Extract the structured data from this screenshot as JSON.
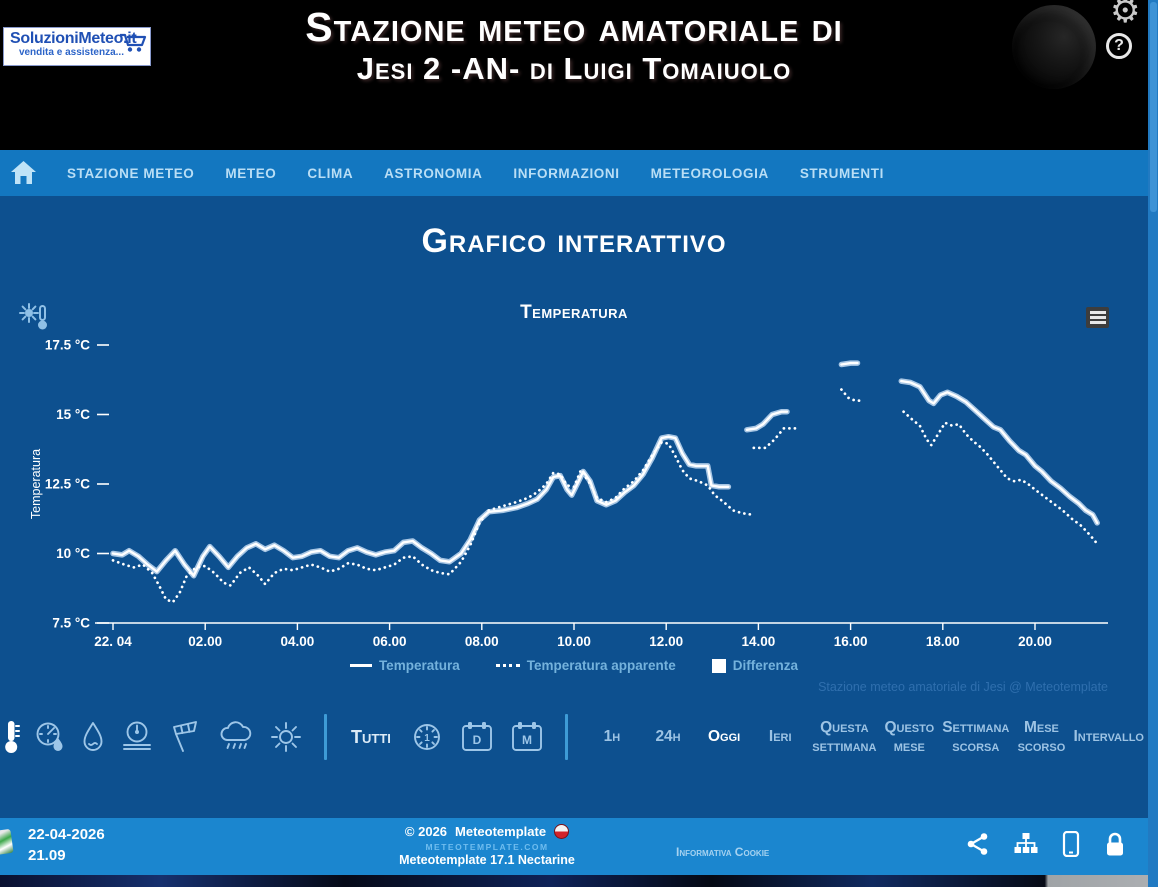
{
  "header": {
    "logo": {
      "line1": "SoluzioniMeteo.it",
      "line2": "vendita e assistenza..."
    },
    "title_line1": "Stazione meteo amatoriale di",
    "title_line2": "Jesi 2 -AN- di Luigi Tomaiuolo"
  },
  "nav": {
    "items": [
      "STAZIONE METEO",
      "METEO",
      "CLIMA",
      "ASTRONOMIA",
      "INFORMAZIONI",
      "METEOROLOGIA",
      "STRUMENTI"
    ]
  },
  "page": {
    "title": "Grafico interattivo"
  },
  "chart_data": {
    "type": "line",
    "title": "Temperatura",
    "ylabel": "Temperatura",
    "ylim": [
      7.5,
      17.5
    ],
    "yticks": [
      7.5,
      10,
      12.5,
      15,
      17.5
    ],
    "ytick_labels": [
      "7.5 °C",
      "10 °C",
      "12.5 °C",
      "15 °C",
      "17.5 °C"
    ],
    "xlim_hours": [
      0,
      21.5
    ],
    "xticks": [
      {
        "hour": 0,
        "label": "22. 04"
      },
      {
        "hour": 2,
        "label": "02.00"
      },
      {
        "hour": 4,
        "label": "04.00"
      },
      {
        "hour": 6,
        "label": "06.00"
      },
      {
        "hour": 8,
        "label": "08.00"
      },
      {
        "hour": 10,
        "label": "10.00"
      },
      {
        "hour": 12,
        "label": "12.00"
      },
      {
        "hour": 14,
        "label": "14.00"
      },
      {
        "hour": 16,
        "label": "16.00"
      },
      {
        "hour": 18,
        "label": "18.00"
      },
      {
        "hour": 20,
        "label": "20.00"
      }
    ],
    "grid": false,
    "legend_position": "bottom",
    "series": [
      {
        "name": "Temperatura",
        "style": "solid",
        "color": "#ffffff",
        "unit": "°C",
        "segments": [
          [
            [
              0,
              10.0
            ],
            [
              0.2,
              9.95
            ],
            [
              0.35,
              10.1
            ],
            [
              0.55,
              9.9
            ],
            [
              0.75,
              9.6
            ],
            [
              0.95,
              9.35
            ],
            [
              1.15,
              9.75
            ],
            [
              1.35,
              10.1
            ],
            [
              1.55,
              9.6
            ],
            [
              1.75,
              9.2
            ],
            [
              1.95,
              9.9
            ],
            [
              2.1,
              10.25
            ],
            [
              2.3,
              9.9
            ],
            [
              2.5,
              9.5
            ],
            [
              2.7,
              9.9
            ],
            [
              2.9,
              10.2
            ],
            [
              3.1,
              10.35
            ],
            [
              3.3,
              10.15
            ],
            [
              3.5,
              10.3
            ],
            [
              3.7,
              10.1
            ],
            [
              3.9,
              9.85
            ],
            [
              4.1,
              9.9
            ],
            [
              4.3,
              10.05
            ],
            [
              4.5,
              10.1
            ],
            [
              4.7,
              9.9
            ],
            [
              4.9,
              9.85
            ],
            [
              5.1,
              10.1
            ],
            [
              5.3,
              10.2
            ],
            [
              5.5,
              10.05
            ],
            [
              5.7,
              9.95
            ],
            [
              5.9,
              10.05
            ],
            [
              6.1,
              10.1
            ],
            [
              6.3,
              10.4
            ],
            [
              6.5,
              10.45
            ],
            [
              6.7,
              10.2
            ],
            [
              6.9,
              10.0
            ],
            [
              7.1,
              9.75
            ],
            [
              7.3,
              9.7
            ],
            [
              7.55,
              10.0
            ],
            [
              7.75,
              10.5
            ],
            [
              7.95,
              11.2
            ],
            [
              8.15,
              11.5
            ],
            [
              8.45,
              11.55
            ],
            [
              8.75,
              11.65
            ],
            [
              9.0,
              11.8
            ],
            [
              9.2,
              11.95
            ],
            [
              9.4,
              12.3
            ],
            [
              9.55,
              12.75
            ],
            [
              9.7,
              12.8
            ],
            [
              9.85,
              12.3
            ],
            [
              9.95,
              12.1
            ],
            [
              10.1,
              12.6
            ],
            [
              10.2,
              12.95
            ],
            [
              10.35,
              12.6
            ],
            [
              10.5,
              11.9
            ],
            [
              10.7,
              11.75
            ],
            [
              10.9,
              11.9
            ],
            [
              11.1,
              12.2
            ],
            [
              11.3,
              12.45
            ],
            [
              11.5,
              12.85
            ],
            [
              11.7,
              13.45
            ],
            [
              11.9,
              14.15
            ],
            [
              12.05,
              14.2
            ],
            [
              12.2,
              14.15
            ],
            [
              12.35,
              13.6
            ],
            [
              12.5,
              13.2
            ],
            [
              12.65,
              13.15
            ],
            [
              12.9,
              13.15
            ],
            [
              12.98,
              12.45
            ],
            [
              13.15,
              12.4
            ],
            [
              13.35,
              12.4
            ]
          ],
          [
            [
              13.75,
              14.45
            ],
            [
              13.95,
              14.5
            ],
            [
              14.1,
              14.65
            ],
            [
              14.3,
              15.0
            ],
            [
              14.5,
              15.1
            ],
            [
              14.62,
              15.1
            ]
          ],
          [
            [
              15.8,
              16.8
            ],
            [
              16.0,
              16.85
            ],
            [
              16.15,
              16.85
            ]
          ],
          [
            [
              17.1,
              16.2
            ],
            [
              17.3,
              16.15
            ],
            [
              17.5,
              16.0
            ],
            [
              17.7,
              15.5
            ],
            [
              17.8,
              15.4
            ],
            [
              17.95,
              15.7
            ],
            [
              18.1,
              15.8
            ],
            [
              18.3,
              15.65
            ],
            [
              18.5,
              15.45
            ],
            [
              18.7,
              15.15
            ],
            [
              18.9,
              14.85
            ],
            [
              19.1,
              14.55
            ],
            [
              19.25,
              14.45
            ],
            [
              19.45,
              14.05
            ],
            [
              19.65,
              13.7
            ],
            [
              19.8,
              13.55
            ],
            [
              20.0,
              13.15
            ],
            [
              20.15,
              12.95
            ],
            [
              20.35,
              12.6
            ],
            [
              20.55,
              12.35
            ],
            [
              20.75,
              12.05
            ],
            [
              20.95,
              11.8
            ],
            [
              21.1,
              11.55
            ],
            [
              21.25,
              11.4
            ],
            [
              21.35,
              11.1
            ]
          ]
        ]
      },
      {
        "name": "Temperatura apparente",
        "style": "dotted",
        "color": "#ffffff",
        "unit": "°C",
        "segments": [
          [
            [
              0,
              9.75
            ],
            [
              0.25,
              9.6
            ],
            [
              0.45,
              9.5
            ],
            [
              0.65,
              9.6
            ],
            [
              0.85,
              9.3
            ],
            [
              1.0,
              8.85
            ],
            [
              1.15,
              8.35
            ],
            [
              1.3,
              8.25
            ],
            [
              1.45,
              8.6
            ],
            [
              1.6,
              9.2
            ],
            [
              1.8,
              9.5
            ],
            [
              2.0,
              9.55
            ],
            [
              2.2,
              9.3
            ],
            [
              2.4,
              8.95
            ],
            [
              2.55,
              8.85
            ],
            [
              2.75,
              9.3
            ],
            [
              2.95,
              9.5
            ],
            [
              3.15,
              9.2
            ],
            [
              3.3,
              8.9
            ],
            [
              3.5,
              9.3
            ],
            [
              3.7,
              9.45
            ],
            [
              3.9,
              9.4
            ],
            [
              4.1,
              9.5
            ],
            [
              4.3,
              9.6
            ],
            [
              4.5,
              9.5
            ],
            [
              4.7,
              9.35
            ],
            [
              4.9,
              9.45
            ],
            [
              5.1,
              9.65
            ],
            [
              5.3,
              9.6
            ],
            [
              5.5,
              9.45
            ],
            [
              5.7,
              9.4
            ],
            [
              5.9,
              9.5
            ],
            [
              6.1,
              9.6
            ],
            [
              6.3,
              9.85
            ],
            [
              6.5,
              9.9
            ],
            [
              6.7,
              9.6
            ],
            [
              6.9,
              9.4
            ],
            [
              7.1,
              9.3
            ],
            [
              7.3,
              9.25
            ],
            [
              7.55,
              9.7
            ],
            [
              7.75,
              10.3
            ],
            [
              7.95,
              11.1
            ],
            [
              8.15,
              11.55
            ],
            [
              8.45,
              11.7
            ],
            [
              8.75,
              11.85
            ],
            [
              9.0,
              12.0
            ],
            [
              9.2,
              12.2
            ],
            [
              9.4,
              12.5
            ],
            [
              9.55,
              12.9
            ],
            [
              9.7,
              12.85
            ],
            [
              9.85,
              12.45
            ],
            [
              10.0,
              12.4
            ],
            [
              10.15,
              13.0
            ],
            [
              10.35,
              12.5
            ],
            [
              10.5,
              12.0
            ],
            [
              10.7,
              11.85
            ],
            [
              10.9,
              12.0
            ],
            [
              11.1,
              12.35
            ],
            [
              11.3,
              12.6
            ],
            [
              11.5,
              13.0
            ],
            [
              11.7,
              13.55
            ],
            [
              11.9,
              14.0
            ],
            [
              12.05,
              13.95
            ],
            [
              12.2,
              13.5
            ],
            [
              12.35,
              13.0
            ],
            [
              12.5,
              12.7
            ],
            [
              12.7,
              12.6
            ],
            [
              12.9,
              12.45
            ],
            [
              13.05,
              12.1
            ],
            [
              13.25,
              11.85
            ],
            [
              13.45,
              11.55
            ],
            [
              13.65,
              11.45
            ],
            [
              13.85,
              11.4
            ]
          ],
          [
            [
              13.9,
              13.8
            ],
            [
              14.15,
              13.8
            ],
            [
              14.35,
              14.1
            ],
            [
              14.55,
              14.5
            ],
            [
              14.75,
              14.5
            ],
            [
              14.9,
              14.5
            ]
          ],
          [
            [
              15.8,
              15.9
            ],
            [
              15.95,
              15.6
            ],
            [
              16.1,
              15.5
            ],
            [
              16.2,
              15.5
            ]
          ],
          [
            [
              17.15,
              15.1
            ],
            [
              17.35,
              14.8
            ],
            [
              17.5,
              14.6
            ],
            [
              17.65,
              14.1
            ],
            [
              17.75,
              13.9
            ],
            [
              17.9,
              14.3
            ],
            [
              18.05,
              14.7
            ],
            [
              18.2,
              14.6
            ],
            [
              18.35,
              14.65
            ],
            [
              18.5,
              14.3
            ],
            [
              18.65,
              14.05
            ],
            [
              18.8,
              13.85
            ],
            [
              18.95,
              13.6
            ],
            [
              19.1,
              13.3
            ],
            [
              19.25,
              13.0
            ],
            [
              19.4,
              12.7
            ],
            [
              19.55,
              12.6
            ],
            [
              19.7,
              12.65
            ],
            [
              19.85,
              12.5
            ],
            [
              20.0,
              12.3
            ],
            [
              20.2,
              12.05
            ],
            [
              20.4,
              11.8
            ],
            [
              20.6,
              11.55
            ],
            [
              20.8,
              11.25
            ],
            [
              21.0,
              11.0
            ],
            [
              21.2,
              10.65
            ],
            [
              21.35,
              10.35
            ]
          ]
        ]
      },
      {
        "name": "Differenza",
        "style": "band",
        "color": "#ffffff",
        "derived": "Temperatura - Temperatura apparente",
        "segments": []
      }
    ]
  },
  "credit": "Stazione meteo amatoriale di Jesi @ Meteotemplate",
  "toolbar": {
    "category_icons": [
      "thermometer-icon",
      "thermo-hygro-gauge-icon",
      "raindrop-icon",
      "barometer-icon",
      "windsock-icon",
      "rain-cloud-icon",
      "sun-icon"
    ],
    "all_label": "Tutti",
    "view_icons": [
      "clock-1h-icon",
      "calendar-day-icon",
      "calendar-month-icon"
    ],
    "ranges": [
      {
        "label": "1h"
      },
      {
        "label": "24h"
      },
      {
        "label": "Oggi",
        "active": true
      },
      {
        "label": "Ieri"
      },
      {
        "label": "Questa settimana"
      },
      {
        "label": "Questo mese"
      },
      {
        "label": "Settimana scorsa"
      },
      {
        "label": "Mese scorso"
      },
      {
        "label": "Intervallo"
      }
    ]
  },
  "footer": {
    "date": "22-04-2026",
    "time": "21.09",
    "copyright": "© 2026",
    "brand": "Meteotemplate",
    "site": "METEOTEMPLATE.COM",
    "version": "Meteotemplate 17.1 Nectarine",
    "cookie_link": "Informativa Cookie"
  },
  "colors": {
    "header_bg": "#000000",
    "nav_bg": "#1377c0",
    "main_bg": "#0d508f",
    "footer_bg": "#1b86cf",
    "accent_text": "#9cc3e4",
    "line": "#ffffff"
  }
}
